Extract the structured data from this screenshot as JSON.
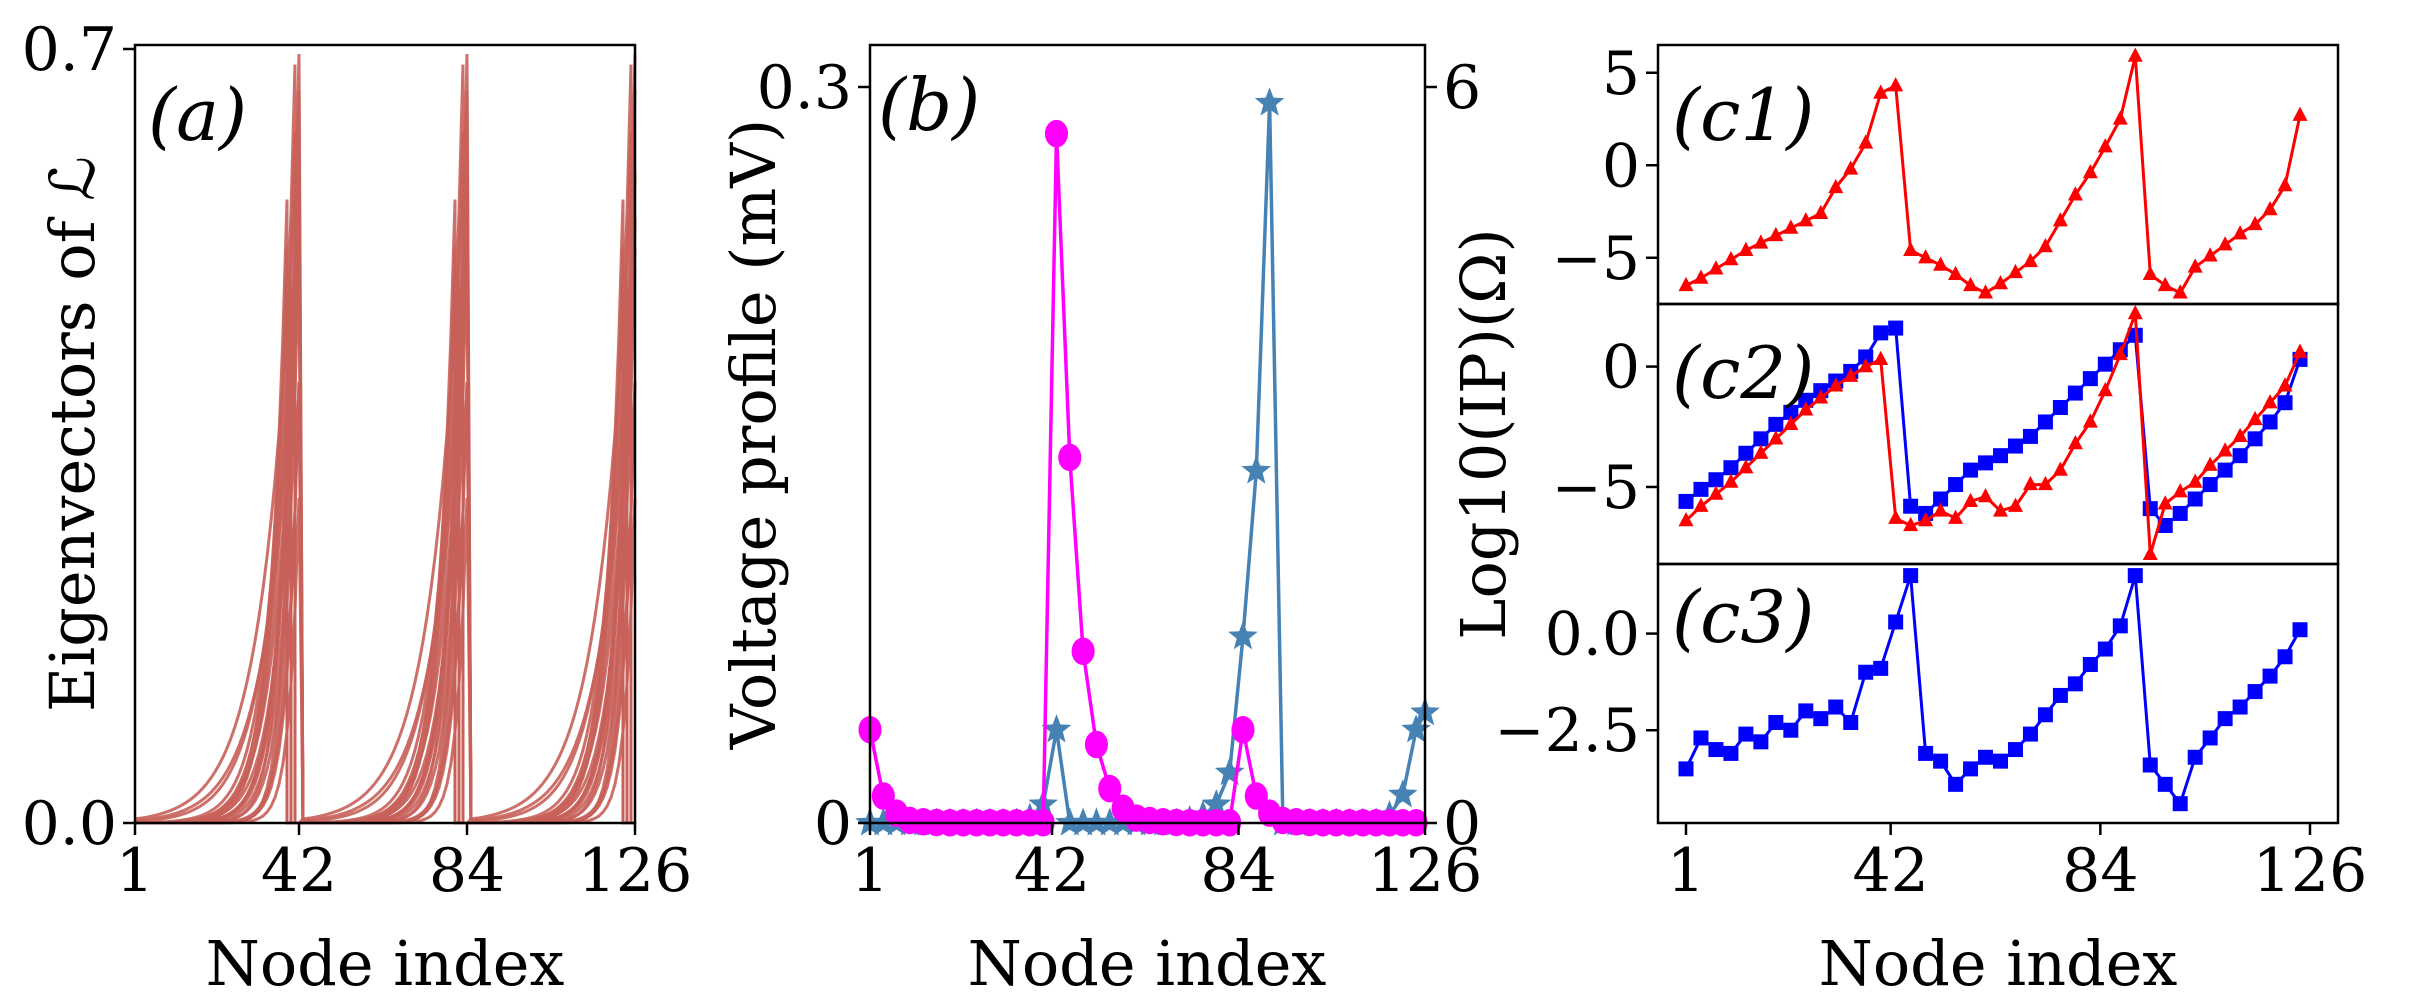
{
  "colors": {
    "panel_a_lines": "#c8605a",
    "magenta": "#ff00ff",
    "steelblue": "#4682b4",
    "red": "#ff0000",
    "blue": "#0000ff"
  },
  "chart_data": [
    {
      "id": "a",
      "type": "line",
      "panel_label": "(a)",
      "xlabel": "Node index",
      "ylabel": "Eigenvectors of ℒ",
      "xlim": [
        1,
        126
      ],
      "ylim": [
        0,
        0.7
      ],
      "xticks": [
        1,
        42,
        84,
        126
      ],
      "xticklabels": [
        "1",
        "42",
        "84",
        "126"
      ],
      "yticks": [
        0,
        0.7
      ],
      "yticklabels": [
        "0.0",
        "0.7"
      ],
      "description_series": "many overlapping eigenvector profiles with peaks near nodes 42, 84, 126",
      "peak_nodes": [
        42,
        84,
        126
      ],
      "n_eigenvectors": 24,
      "color": "#c8605a"
    },
    {
      "id": "b",
      "type": "line",
      "panel_label": "(b)",
      "xlabel": "Node index",
      "ylabel": "Voltage profile (mV)",
      "xlim": [
        1,
        126
      ],
      "ylim": [
        0,
        0.3
      ],
      "ylim_right": [
        0,
        6
      ],
      "xticks": [
        1,
        42,
        84,
        126
      ],
      "xticklabels": [
        "1",
        "42",
        "84",
        "126"
      ],
      "yticks": [
        0,
        0.3
      ],
      "yticklabels": [
        "0",
        "0.3"
      ],
      "yticks_right": [
        0,
        6
      ],
      "yticklabels_right": [
        "0",
        "6"
      ],
      "series": [
        {
          "marker": "circle",
          "color": "#ff00ff",
          "axis": "left",
          "x": [
            1,
            4,
            7,
            10,
            13,
            16,
            19,
            22,
            25,
            28,
            31,
            34,
            37,
            40,
            43,
            46,
            49,
            52,
            55,
            58,
            61,
            64,
            67,
            70,
            73,
            76,
            79,
            82,
            85,
            88,
            91,
            94,
            97,
            100,
            103,
            106,
            109,
            112,
            115,
            118,
            121,
            124
          ],
          "y": [
            0.038,
            0.011,
            0.004,
            0.001,
            0.0005,
            0.0002,
            0.0001,
            0.0001,
            0.0001,
            0.0001,
            0.0001,
            0.0001,
            0.0001,
            0.0001,
            0.281,
            0.149,
            0.07,
            0.032,
            0.014,
            0.006,
            0.002,
            0.001,
            0.0005,
            0.0002,
            0.0001,
            0.0001,
            0.0001,
            0.0001,
            0.038,
            0.011,
            0.004,
            0.001,
            0.0005,
            0.0002,
            0.0001,
            0.0001,
            0.0001,
            0.0001,
            0.0001,
            0.0001,
            0.0001,
            0.0001
          ]
        },
        {
          "marker": "star",
          "color": "#4682b4",
          "axis": "right",
          "x": [
            1,
            4,
            7,
            10,
            13,
            16,
            19,
            22,
            25,
            28,
            31,
            34,
            37,
            40,
            43,
            46,
            49,
            52,
            55,
            58,
            61,
            64,
            67,
            70,
            73,
            76,
            79,
            82,
            85,
            88,
            91,
            94,
            97,
            100,
            103,
            106,
            109,
            112,
            115,
            118,
            121,
            124,
            126
          ],
          "y": [
            0,
            0,
            0,
            0,
            0,
            0,
            0,
            0,
            0,
            0,
            0,
            0,
            0.04,
            0.15,
            0.76,
            0,
            0,
            0,
            0,
            0,
            0,
            0,
            0,
            0,
            0.02,
            0.06,
            0.15,
            0.41,
            1.52,
            2.87,
            5.87,
            0,
            0,
            0,
            0,
            0,
            0,
            0,
            0,
            0.06,
            0.23,
            0.76,
            0.9
          ]
        }
      ]
    },
    {
      "id": "c1",
      "type": "line",
      "panel_label": "(c1)",
      "ylim": [
        -7.5,
        6.5
      ],
      "yticks": [
        5,
        0,
        -5
      ],
      "yticklabels": [
        "5",
        "0",
        "−5"
      ],
      "series": [
        {
          "marker": "triangle",
          "color": "#ff0000",
          "x": [
            1,
            4,
            7,
            10,
            13,
            16,
            19,
            22,
            25,
            28,
            31,
            34,
            37,
            40,
            43,
            46,
            49,
            52,
            55,
            58,
            61,
            64,
            67,
            70,
            73,
            76,
            79,
            82,
            85,
            88,
            91,
            94,
            97,
            100,
            103,
            106,
            109,
            112,
            115,
            118,
            121,
            124
          ],
          "y": [
            -6.5,
            -6.1,
            -5.6,
            -5.1,
            -4.6,
            -4.2,
            -3.8,
            -3.4,
            -3.0,
            -2.6,
            -1.2,
            -0.2,
            1.2,
            3.9,
            4.3,
            -4.6,
            -5.0,
            -5.4,
            -5.9,
            -6.5,
            -6.9,
            -6.4,
            -5.8,
            -5.2,
            -4.4,
            -3.0,
            -1.6,
            -0.4,
            1.0,
            2.5,
            5.9,
            -5.9,
            -6.5,
            -6.9,
            -5.5,
            -4.9,
            -4.3,
            -3.7,
            -3.2,
            -2.4,
            -1.1,
            2.7
          ]
        }
      ]
    },
    {
      "id": "c2",
      "type": "line",
      "panel_label": "(c2)",
      "ylim": [
        -8.2,
        2.6
      ],
      "yticks": [
        0,
        -5
      ],
      "yticklabels": [
        "0",
        "−5"
      ],
      "series": [
        {
          "marker": "square",
          "color": "#0000ff",
          "x": [
            1,
            4,
            7,
            10,
            13,
            16,
            19,
            22,
            25,
            28,
            31,
            34,
            37,
            40,
            43,
            46,
            49,
            52,
            55,
            58,
            61,
            64,
            67,
            70,
            73,
            76,
            79,
            82,
            85,
            88,
            91,
            94,
            97,
            100,
            103,
            106,
            109,
            112,
            115,
            118,
            121,
            124
          ],
          "y": [
            -5.6,
            -5.1,
            -4.7,
            -4.2,
            -3.6,
            -3.0,
            -2.4,
            -1.9,
            -1.4,
            -1.0,
            -0.6,
            -0.2,
            0.4,
            1.4,
            1.6,
            -5.8,
            -6.1,
            -5.5,
            -4.9,
            -4.3,
            -4.0,
            -3.7,
            -3.3,
            -2.9,
            -2.3,
            -1.7,
            -1.1,
            -0.5,
            0.1,
            0.7,
            1.3,
            -5.9,
            -6.6,
            -6.1,
            -5.5,
            -4.9,
            -4.3,
            -3.7,
            -3.0,
            -2.3,
            -1.5,
            0.3
          ]
        },
        {
          "marker": "triangle",
          "color": "#ff0000",
          "x": [
            1,
            4,
            7,
            10,
            13,
            16,
            19,
            22,
            25,
            28,
            31,
            34,
            37,
            40,
            43,
            46,
            49,
            52,
            55,
            58,
            61,
            64,
            67,
            70,
            73,
            76,
            79,
            82,
            85,
            88,
            91,
            94,
            97,
            100,
            103,
            106,
            109,
            112,
            115,
            118,
            121,
            124
          ],
          "y": [
            -6.4,
            -5.8,
            -5.3,
            -4.8,
            -4.2,
            -3.6,
            -3.0,
            -2.4,
            -1.8,
            -1.3,
            -0.8,
            -0.4,
            0.0,
            0.3,
            -6.3,
            -6.6,
            -6.4,
            -6.0,
            -6.3,
            -5.6,
            -5.4,
            -6.0,
            -5.8,
            -4.9,
            -4.9,
            -4.3,
            -3.2,
            -2.3,
            -1.0,
            0.5,
            2.2,
            -7.8,
            -5.7,
            -5.2,
            -4.8,
            -4.1,
            -3.5,
            -2.9,
            -2.2,
            -1.5,
            -0.8,
            0.6
          ]
        }
      ]
    },
    {
      "id": "c3",
      "type": "line",
      "panel_label": "(c3)",
      "xlabel": "Node index",
      "ylabel": "Log10(IP)(Ω)",
      "ylim": [
        -4.9,
        1.8
      ],
      "xticks": [
        1,
        42,
        84,
        126
      ],
      "xticklabels": [
        "1",
        "42",
        "84",
        "126"
      ],
      "yticks": [
        0.0,
        -2.5
      ],
      "yticklabels": [
        "0.0",
        "−2.5"
      ],
      "series": [
        {
          "marker": "square",
          "color": "#0000ff",
          "x": [
            1,
            4,
            7,
            10,
            13,
            16,
            19,
            22,
            25,
            28,
            31,
            34,
            37,
            40,
            43,
            46,
            49,
            52,
            55,
            58,
            61,
            64,
            67,
            70,
            73,
            76,
            79,
            82,
            85,
            88,
            91,
            94,
            97,
            100,
            103,
            106,
            109,
            112,
            115,
            118,
            121,
            124
          ],
          "y": [
            -3.5,
            -2.7,
            -3.0,
            -3.1,
            -2.6,
            -2.8,
            -2.3,
            -2.5,
            -2.0,
            -2.2,
            -1.9,
            -2.3,
            -1.0,
            -0.9,
            0.3,
            1.5,
            -3.1,
            -3.3,
            -3.9,
            -3.5,
            -3.2,
            -3.3,
            -3.0,
            -2.6,
            -2.1,
            -1.6,
            -1.3,
            -0.8,
            -0.4,
            0.2,
            1.5,
            -3.4,
            -3.9,
            -4.4,
            -3.2,
            -2.7,
            -2.2,
            -1.9,
            -1.5,
            -1.1,
            -0.6,
            0.1
          ]
        }
      ]
    }
  ]
}
